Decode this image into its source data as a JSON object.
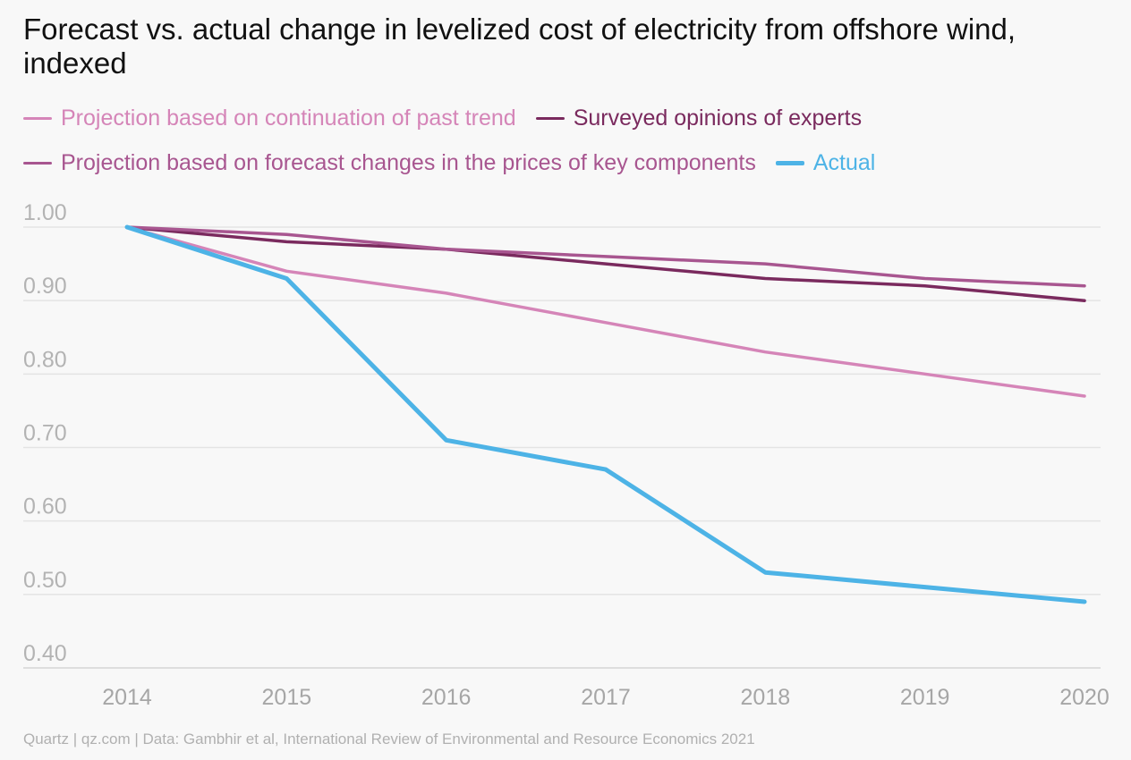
{
  "title": "Forecast vs. actual change in levelized cost of electricity from offshore wind, indexed",
  "source": "Quartz | qz.com | Data: Gambhir et al, International Review of Environmental and Resource Economics 2021",
  "legend": [
    {
      "label": "Projection based on continuation of past trend",
      "color": "#d585b8"
    },
    {
      "label": "Surveyed opinions of experts",
      "color": "#7a2a5e"
    },
    {
      "label": "Projection based on forecast changes in the prices of key components",
      "color": "#a85690"
    },
    {
      "label": "Actual",
      "color": "#4db3e6"
    }
  ],
  "chart_data": {
    "type": "line",
    "title": "Forecast vs. actual change in levelized cost of electricity from offshore wind, indexed",
    "x": [
      2014,
      2015,
      2016,
      2017,
      2018,
      2019,
      2020
    ],
    "y_ticks": [
      "1.00",
      "0.90",
      "0.80",
      "0.70",
      "0.60",
      "0.50",
      "0.40"
    ],
    "x_ticks": [
      "2014",
      "2015",
      "2016",
      "2017",
      "2018",
      "2019",
      "2020"
    ],
    "ylim": [
      0.4,
      1.0
    ],
    "grid": true,
    "legend_position": "top",
    "series": [
      {
        "name": "Projection based on continuation of past trend",
        "color": "#d585b8",
        "values": [
          1.0,
          0.94,
          0.91,
          0.87,
          0.83,
          0.8,
          0.77
        ]
      },
      {
        "name": "Surveyed opinions of experts",
        "color": "#7a2a5e",
        "values": [
          1.0,
          0.98,
          0.97,
          0.95,
          0.93,
          0.92,
          0.9
        ]
      },
      {
        "name": "Projection based on forecast changes in the prices of key components",
        "color": "#a85690",
        "values": [
          1.0,
          0.99,
          0.97,
          0.96,
          0.95,
          0.93,
          0.92
        ]
      },
      {
        "name": "Actual",
        "color": "#4db3e6",
        "values": [
          1.0,
          0.93,
          0.71,
          0.67,
          0.53,
          0.51,
          0.49
        ]
      }
    ]
  }
}
